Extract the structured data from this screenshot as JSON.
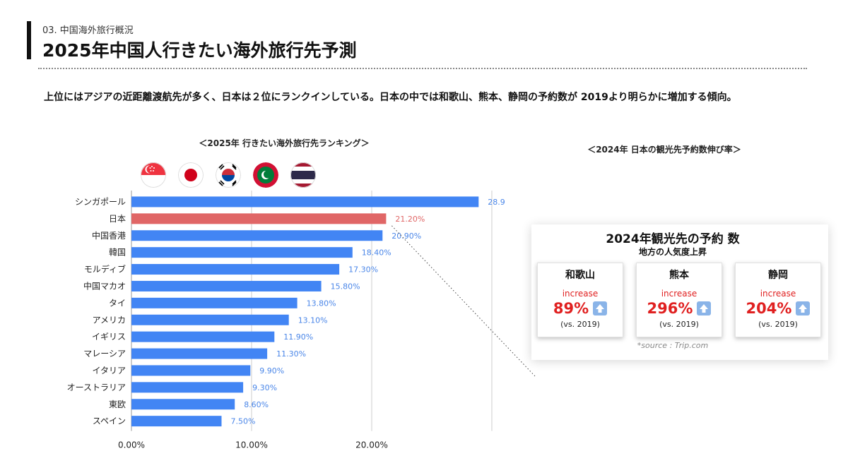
{
  "header": {
    "section": "03. 中国海外旅行概況",
    "title": "2025年中国人行きたい海外旅行先予測"
  },
  "summary": "上位にはアジアの近距離渡航先が多く、日本は２位にランクインしている。日本の中では和歌山、熊本、静岡の予約数が 2019より明らかに増加する傾向。",
  "flags": [
    "singapore-flag",
    "japan-flag",
    "korea-flag",
    "maldives-flag",
    "thailand-flag"
  ],
  "colors": {
    "bar": "#4285f4",
    "highlight": "#e06666",
    "text_blue": "#4a86e8",
    "red": "#e02020"
  },
  "chart_data": {
    "type": "bar",
    "orientation": "horizontal",
    "title": "＜2025年 行きたい海外旅行先ランキング＞",
    "categories": [
      "シンガポール",
      "日本",
      "中国香港",
      "韓国",
      "モルディブ",
      "中国マカオ",
      "タイ",
      "アメリカ",
      "イギリス",
      "マレーシア",
      "イタリア",
      "オーストラリア",
      "東欧",
      "スペイン"
    ],
    "values": [
      28.9,
      21.2,
      20.9,
      18.4,
      17.3,
      15.8,
      13.8,
      13.1,
      11.9,
      11.3,
      9.9,
      9.3,
      8.6,
      7.5
    ],
    "data_labels": [
      "28.9",
      "21.20%",
      "20.90%",
      "18.40%",
      "17.30%",
      "15.80%",
      "13.80%",
      "13.10%",
      "11.90%",
      "11.30%",
      "9.90%",
      "9.30%",
      "8.60%",
      "7.50%"
    ],
    "highlight_category": "日本",
    "xlim": [
      0,
      30
    ],
    "xticks": [
      0,
      10,
      20
    ],
    "xtick_labels": [
      "0.00%",
      "10.00%",
      "20.00%"
    ],
    "grid": true
  },
  "growth": {
    "heading": "＜2024年 日本の観光先予約数伸び率＞",
    "panel_title": "2024年観光先の予約 数",
    "panel_subtitle": "地方の人気度上昇",
    "cards": [
      {
        "city": "和歌山",
        "label": "increase",
        "value": "89%",
        "baseline": "(vs. 2019)"
      },
      {
        "city": "熊本",
        "label": "increase",
        "value": "296%",
        "baseline": "(vs. 2019)"
      },
      {
        "city": "静岡",
        "label": "increase",
        "value": "204%",
        "baseline": "(vs. 2019)"
      }
    ],
    "source": "*source : Trip.com"
  }
}
